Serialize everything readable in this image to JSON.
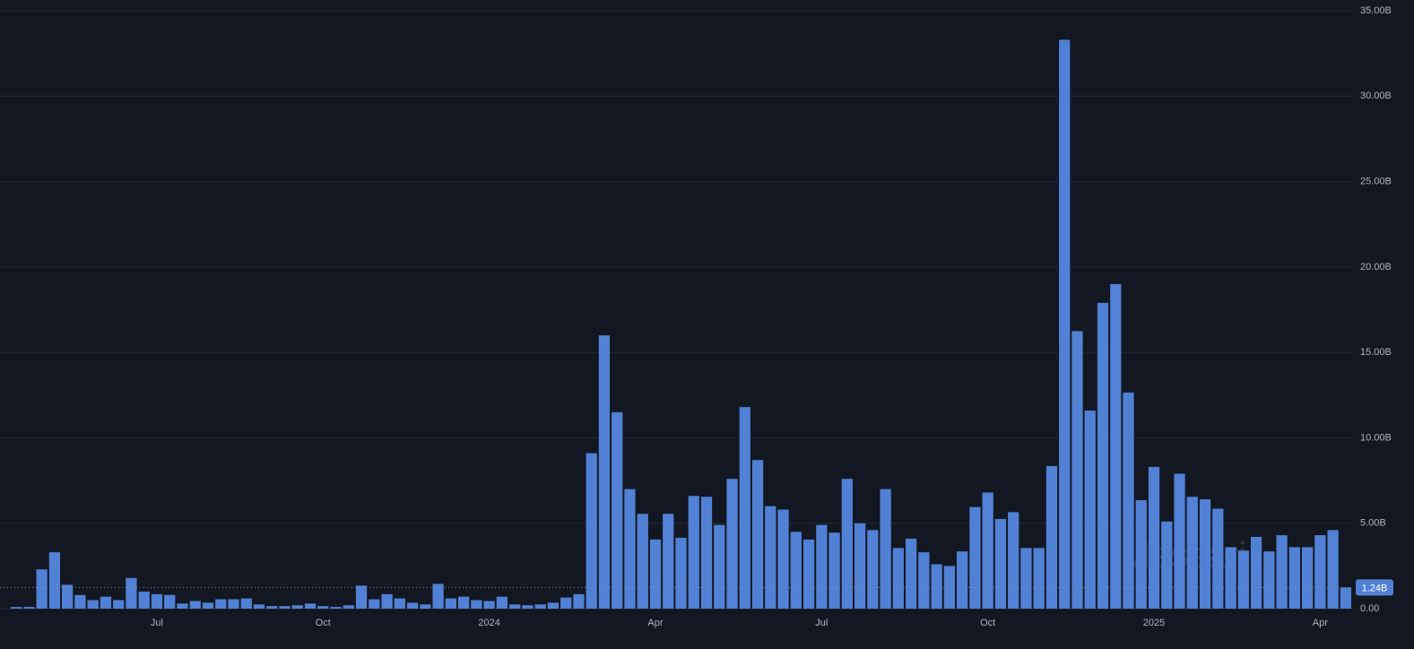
{
  "chart_data": {
    "type": "bar",
    "watermark": "Messari",
    "color": "#5081d4",
    "categories": [
      null,
      null,
      null,
      null,
      null,
      null,
      null,
      null,
      null,
      null,
      null,
      "Jul",
      null,
      null,
      null,
      null,
      null,
      null,
      null,
      null,
      null,
      null,
      null,
      null,
      "Oct",
      null,
      null,
      null,
      null,
      null,
      null,
      null,
      null,
      null,
      null,
      null,
      null,
      "2024",
      null,
      null,
      null,
      null,
      null,
      null,
      null,
      null,
      null,
      null,
      null,
      null,
      "Apr",
      null,
      null,
      null,
      null,
      null,
      null,
      null,
      null,
      null,
      null,
      null,
      null,
      "Jul",
      null,
      null,
      null,
      null,
      null,
      null,
      null,
      null,
      null,
      null,
      null,
      null,
      "Oct",
      null,
      null,
      null,
      null,
      null,
      null,
      null,
      null,
      null,
      null,
      null,
      null,
      "2025",
      null,
      null,
      null,
      null,
      null,
      null,
      null,
      null,
      null,
      null,
      null,
      null,
      "Apr",
      null,
      null
    ],
    "values": [
      0.1,
      0.1,
      2.3,
      3.3,
      1.4,
      0.8,
      0.5,
      0.7,
      0.5,
      1.8,
      1.0,
      0.85,
      0.8,
      0.3,
      0.45,
      0.35,
      0.55,
      0.55,
      0.6,
      0.25,
      0.15,
      0.15,
      0.2,
      0.3,
      0.15,
      0.1,
      0.2,
      1.35,
      0.55,
      0.85,
      0.6,
      0.35,
      0.25,
      1.45,
      0.6,
      0.7,
      0.5,
      0.45,
      0.7,
      0.25,
      0.2,
      0.25,
      0.35,
      0.65,
      0.85,
      9.1,
      16.0,
      11.5,
      7.0,
      5.55,
      4.05,
      5.55,
      4.15,
      6.6,
      6.55,
      4.9,
      7.6,
      11.8,
      8.7,
      6.0,
      5.8,
      4.5,
      4.05,
      4.9,
      4.45,
      7.6,
      5.0,
      4.6,
      7.0,
      3.55,
      4.1,
      3.3,
      2.6,
      2.5,
      3.35,
      5.95,
      6.8,
      5.25,
      5.65,
      3.55,
      3.55,
      8.35,
      33.3,
      16.25,
      11.6,
      17.9,
      19.0,
      12.65,
      6.35,
      8.3,
      5.1,
      7.9,
      6.55,
      6.4,
      5.85,
      3.6,
      3.4,
      4.2,
      3.35,
      4.3,
      3.6,
      3.6,
      4.3,
      4.6,
      1.24
    ],
    "value_labels": [
      null,
      null,
      null,
      null,
      null,
      null,
      null,
      null,
      null,
      null,
      null,
      null,
      null,
      null,
      null,
      null,
      null,
      null,
      null,
      null,
      null,
      null,
      null,
      null,
      null,
      null,
      null,
      null,
      null,
      null,
      null,
      null,
      null,
      null,
      null,
      null,
      null,
      null,
      null,
      null,
      null,
      null,
      null,
      null,
      null,
      null,
      null,
      null,
      null,
      null,
      null,
      null,
      null,
      null,
      null,
      null,
      null,
      null,
      null,
      null,
      null,
      null,
      null,
      null,
      null,
      null,
      null,
      null,
      null,
      null,
      null,
      null,
      null,
      null,
      null,
      null,
      null,
      null,
      null,
      null,
      null,
      null,
      null,
      null,
      null,
      null,
      null,
      null,
      null,
      null,
      null,
      null,
      null,
      null,
      null,
      null,
      null,
      null,
      null,
      null,
      null,
      null,
      null,
      null,
      "1.24B"
    ],
    "ylim": [
      0,
      35
    ],
    "yticks": [
      {
        "value": 0,
        "label": "0.00"
      },
      {
        "value": 5,
        "label": "5.00B"
      },
      {
        "value": 10,
        "label": "10.00B"
      },
      {
        "value": 15,
        "label": "15.00B"
      },
      {
        "value": 20,
        "label": "20.00B"
      },
      {
        "value": 25,
        "label": "25.00B"
      },
      {
        "value": 30,
        "label": "30.00B"
      },
      {
        "value": 35,
        "label": "35.00B"
      }
    ],
    "grid": true
  }
}
